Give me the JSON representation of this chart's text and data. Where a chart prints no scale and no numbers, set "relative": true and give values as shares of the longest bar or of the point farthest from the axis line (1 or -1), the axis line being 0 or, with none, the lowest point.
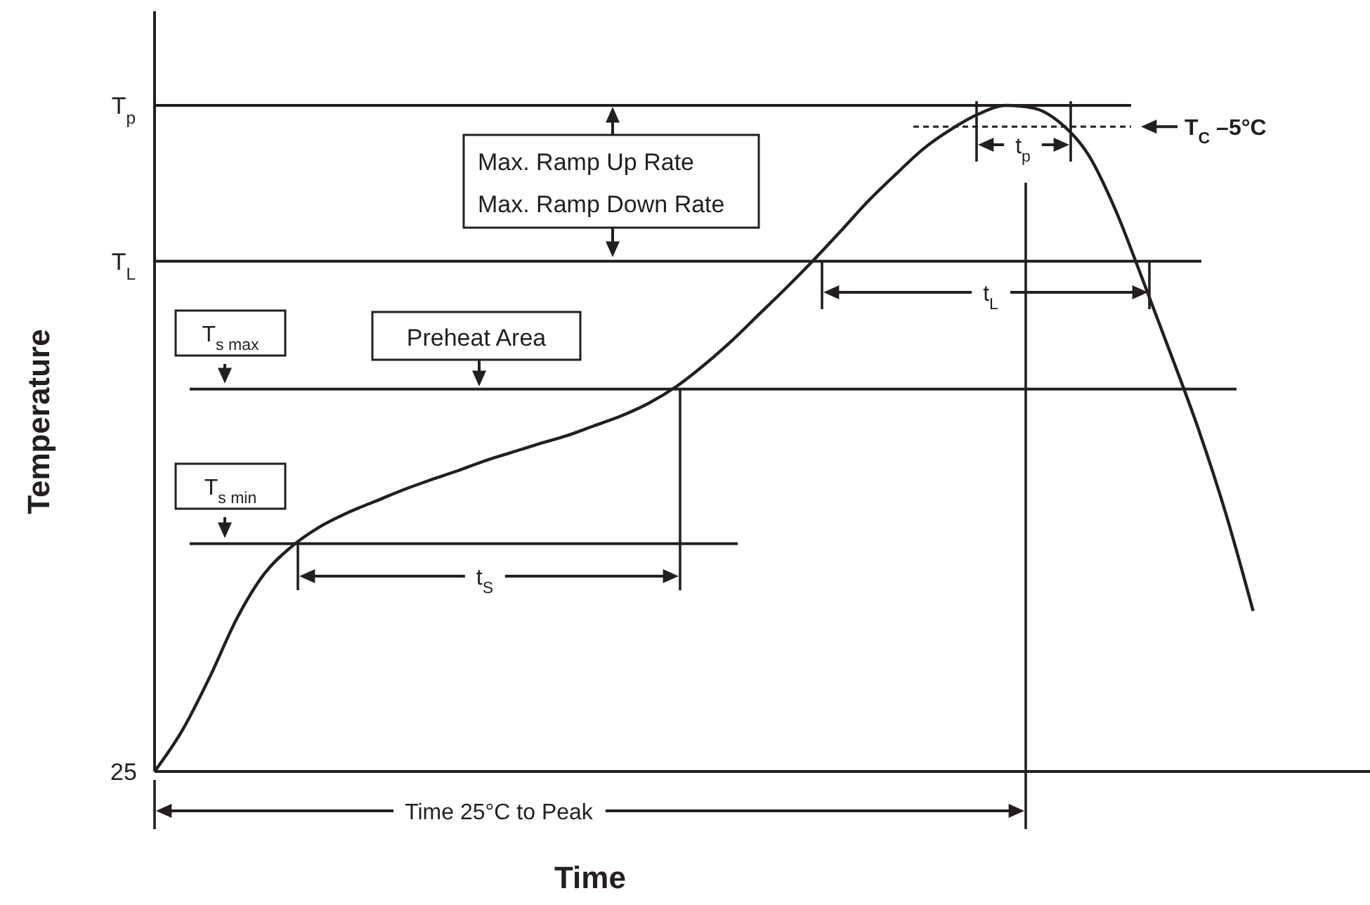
{
  "chart_data": {
    "type": "line",
    "relative": true,
    "xlabel": "Time",
    "ylabel": "Temperature",
    "categories": [
      null,
      null,
      null,
      null,
      null,
      null,
      null,
      null,
      null,
      null,
      null,
      null,
      null,
      null,
      null,
      null,
      null,
      null,
      null,
      null,
      null,
      null,
      null,
      null,
      null,
      null,
      null,
      null,
      null,
      null,
      null,
      null,
      null,
      null,
      null,
      null,
      null,
      null,
      null,
      null,
      null,
      null,
      null,
      null,
      null
    ],
    "series": [
      {
        "color": "#231f20",
        "values": [
          0,
          0.061,
          0.141,
          0.23,
          0.297,
          0.338,
          0.367,
          0.388,
          0.405,
          0.422,
          0.437,
          0.451,
          0.466,
          0.479,
          0.492,
          0.504,
          0.519,
          0.534,
          0.553,
          0.578,
          0.61,
          0.646,
          0.686,
          0.726,
          0.768,
          0.812,
          0.857,
          0.897,
          0.935,
          0.964,
          0.987,
          1,
          0.996,
          0.973,
          0.926,
          0.842,
          0.736,
          0.627,
          0.515,
          0.388,
          0.241,
          null,
          null,
          null,
          null
        ]
      }
    ],
    "ref_lines": [
      {
        "axis": "y",
        "value": 1,
        "label": "T$_{p}$"
      },
      {
        "axis": "y",
        "value": 0.766,
        "label": "T$_{L}$"
      },
      {
        "axis": "y",
        "value": 0.574,
        "label": "T$_{s max}$"
      },
      {
        "axis": "y",
        "value": 0.342,
        "label": "T$_{s min}$"
      },
      {
        "axis": "y",
        "value": 0.968,
        "label": "T$_{C}$ –5°C",
        "line_style": "dashed"
      }
    ],
    "annotations": [
      "Max. Ramp Up Rate",
      "Max. Ramp Down Rate",
      "Preheat Area",
      "t$_{S}$",
      "t$_{L}$",
      "t$_{p}$",
      "Time 25°C to Peak",
      "25"
    ]
  }
}
